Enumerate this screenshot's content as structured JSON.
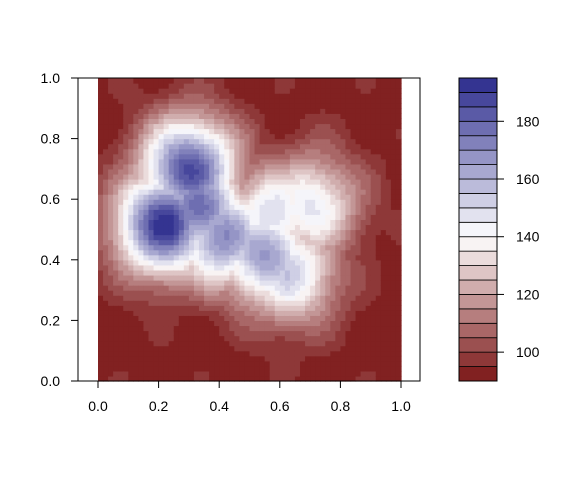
{
  "chart_data": {
    "type": "filled-contour",
    "title": "",
    "xlabel": "",
    "ylabel": "",
    "xlim": [
      0.0,
      1.0
    ],
    "ylim": [
      0.0,
      1.0
    ],
    "x_ticks": [
      "0.0",
      "0.2",
      "0.4",
      "0.6",
      "0.8",
      "1.0"
    ],
    "y_ticks": [
      "0.0",
      "0.2",
      "0.4",
      "0.6",
      "0.8",
      "1.0"
    ],
    "z_range": [
      90,
      195
    ],
    "contour_step": 5,
    "legend": {
      "position": "right",
      "tick_labels": [
        "100",
        "120",
        "140",
        "160",
        "180"
      ],
      "tick_values": [
        100,
        120,
        140,
        160,
        180
      ]
    },
    "color_scale": {
      "low": "#7a1515",
      "mid": "#ffffff",
      "mid_value": 140,
      "high": "#2a2a8c"
    },
    "surface": {
      "peaks": [
        {
          "x": 0.22,
          "y": 0.52,
          "z": 192
        },
        {
          "x": 0.33,
          "y": 0.57,
          "z": 178
        },
        {
          "x": 0.3,
          "y": 0.7,
          "z": 185
        },
        {
          "x": 0.41,
          "y": 0.48,
          "z": 170
        },
        {
          "x": 0.55,
          "y": 0.42,
          "z": 166
        },
        {
          "x": 0.63,
          "y": 0.36,
          "z": 152
        },
        {
          "x": 0.58,
          "y": 0.55,
          "z": 150
        },
        {
          "x": 0.7,
          "y": 0.58,
          "z": 146
        }
      ],
      "base": 92
    }
  }
}
